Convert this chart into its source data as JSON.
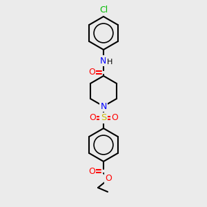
{
  "bg_color": "#ebebeb",
  "bond_color": "#000000",
  "figsize": [
    3.0,
    3.0
  ],
  "dpi": 100,
  "atom_colors": {
    "Cl": "#00bb00",
    "N": "#0000ff",
    "O": "#ff0000",
    "S": "#ccbb00",
    "C": "#000000",
    "H": "#000000"
  }
}
